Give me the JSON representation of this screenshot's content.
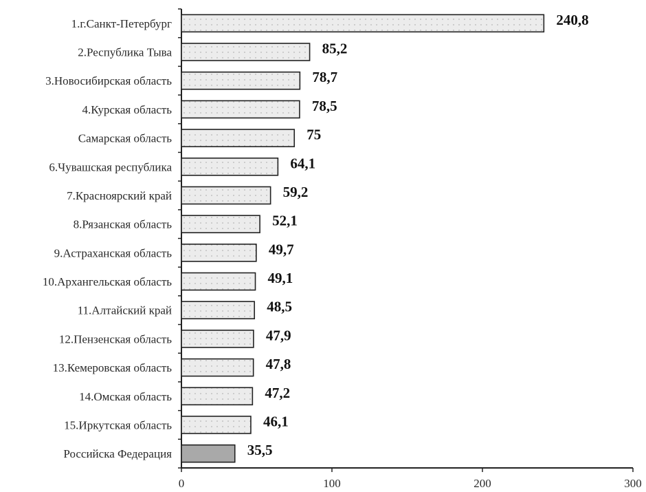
{
  "chart_data": {
    "type": "bar",
    "orientation": "horizontal",
    "title": "",
    "xlabel": "",
    "ylabel": "",
    "xlim": [
      0,
      300
    ],
    "x_ticks": [
      "0",
      "100",
      "200",
      "300"
    ],
    "grid": false,
    "categories": [
      "1.г.Санкт-Петербург",
      "2.Республика Тыва",
      "3.Новосибирская область",
      "4.Курская область",
      "Самарская область",
      "6.Чувашская республика",
      "7.Красноярский край",
      "8.Рязанская область",
      "9.Астраханская область",
      "10.Архангельская область",
      "11.Алтайский край",
      "12.Пензенская область",
      "13.Кемеровская область",
      "14.Омская область",
      "15.Иркутская область",
      "Российска Федерация"
    ],
    "values": [
      240.8,
      85.2,
      78.7,
      78.5,
      75,
      64.1,
      59.2,
      52.1,
      49.7,
      49.1,
      48.5,
      47.9,
      47.8,
      47.2,
      46.1,
      35.5
    ],
    "value_labels": [
      "240,8",
      "85,2",
      "78,7",
      "78,5",
      "75",
      "64,1",
      "59,2",
      "52,1",
      "49,7",
      "49,1",
      "48,5",
      "47,9",
      "47,8",
      "47,2",
      "46,1",
      "35,5"
    ],
    "colors": {
      "bar_fill": "#ececec",
      "bar_dots": "#b5b5b5",
      "highlight_fill": "#a9a9a9",
      "bar_stroke": "#222222",
      "axis": "#222222"
    },
    "highlight_index": 15
  }
}
